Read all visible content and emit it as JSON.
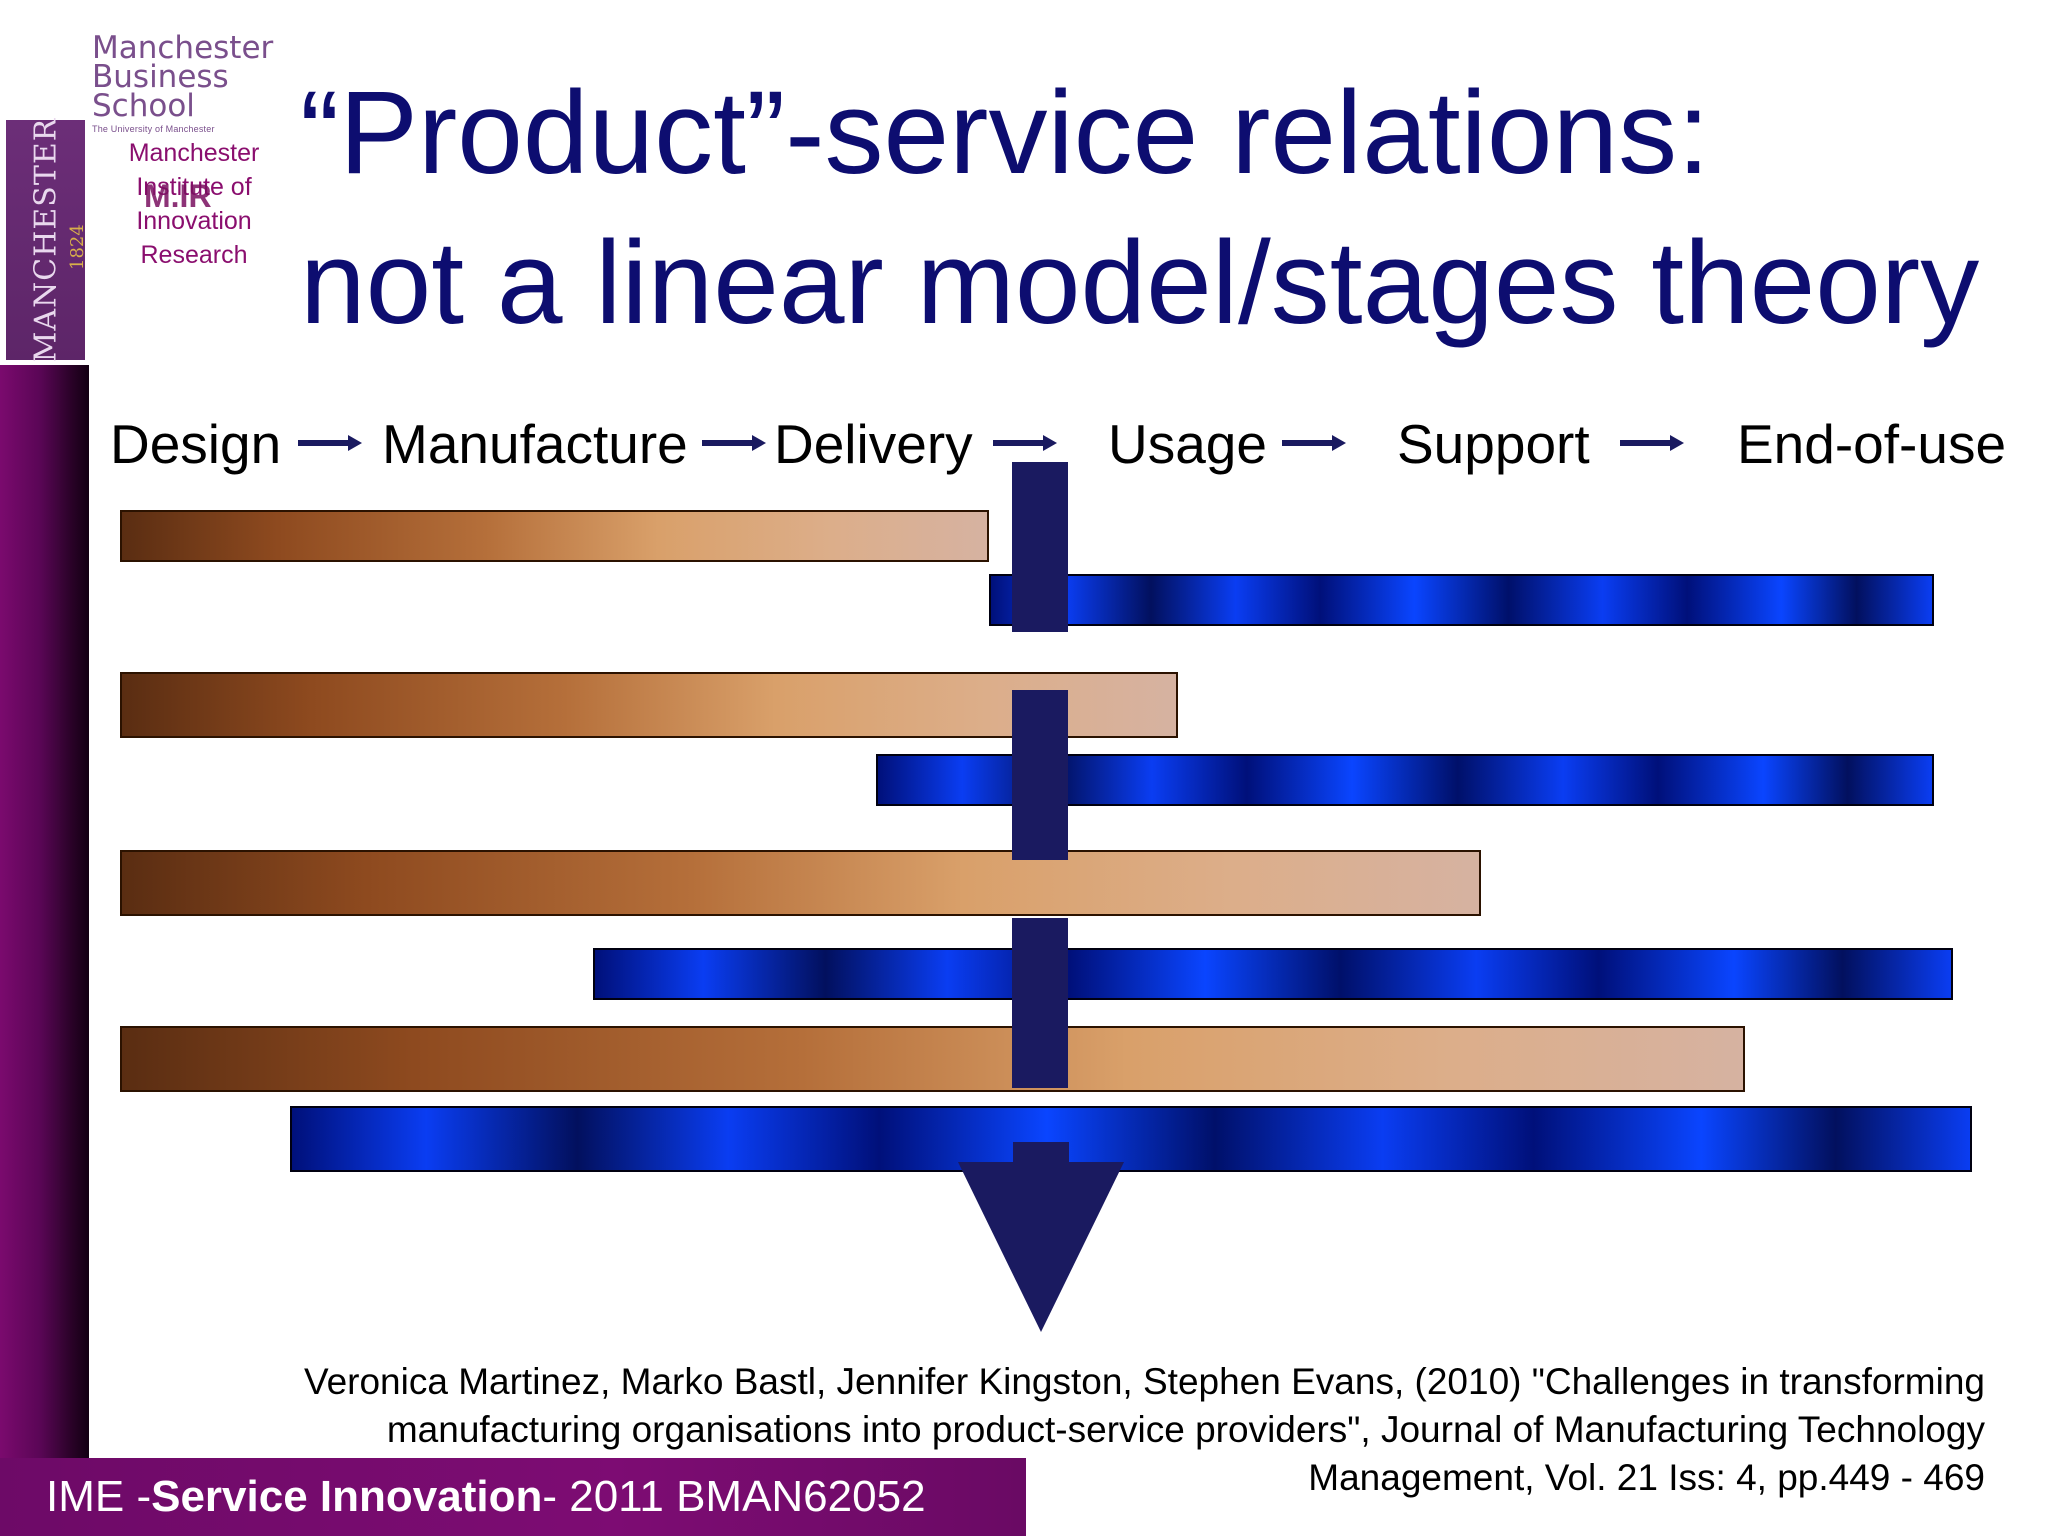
{
  "logos": {
    "mbs": {
      "line1": "Manchester",
      "line2": "Business School",
      "sub": "The University of Manchester"
    },
    "university": {
      "name": "MANCHESTER",
      "year": "1824"
    },
    "miir": {
      "lines": [
        "Manchester",
        "Institute of",
        "Innovation",
        "Research"
      ],
      "mark": "M.IR"
    }
  },
  "title": {
    "line1": "“Product”-service relations:",
    "line2": "not a linear model/stages theory"
  },
  "stages": [
    "Design",
    "Manufacture",
    "Delivery",
    "Usage",
    "Support",
    "End-of-use"
  ],
  "bars": [
    {
      "type": "product",
      "start": 0.0,
      "end": 0.46
    },
    {
      "type": "service",
      "start": 0.46,
      "end": 0.96
    },
    {
      "type": "product",
      "start": 0.0,
      "end": 0.56
    },
    {
      "type": "service",
      "start": 0.4,
      "end": 0.96
    },
    {
      "type": "product",
      "start": 0.0,
      "end": 0.72
    },
    {
      "type": "service",
      "start": 0.25,
      "end": 0.97
    },
    {
      "type": "product",
      "start": 0.0,
      "end": 0.86
    },
    {
      "type": "service",
      "start": 0.09,
      "end": 0.98
    }
  ],
  "colors": {
    "title": "#0d0d70",
    "product_bar": "#b56f3a",
    "service_bar": "#0a3df2",
    "divider": "#1a1a60",
    "footer": "#7d0c73"
  },
  "citation": {
    "line1": "Veronica Martinez, Marko Bastl, Jennifer Kingston, Stephen Evans, (2010) \"Challenges in transforming",
    "line2": "manufacturing organisations into product-service providers\", Journal of Manufacturing Technology",
    "line3": "Management, Vol. 21 Iss: 4, pp.449 - 469"
  },
  "footer": {
    "prefix": "IME - ",
    "course": "Service Innovation",
    "suffix": " - 2011 BMAN62052"
  }
}
